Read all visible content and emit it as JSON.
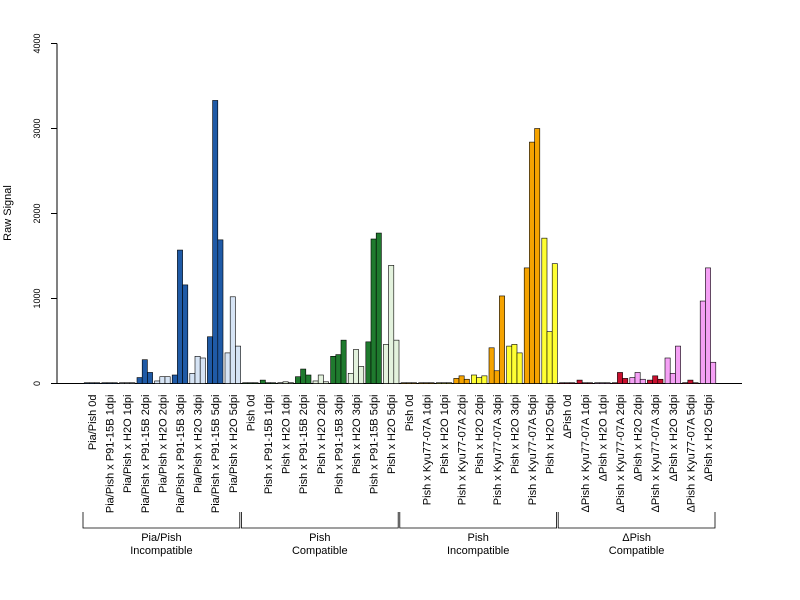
{
  "chart_data": {
    "type": "bar",
    "ylabel": "Raw Signal",
    "ylim": [
      0,
      4000
    ],
    "yticks": [
      0,
      1000,
      2000,
      3000,
      4000
    ],
    "bars_per_category": 3,
    "categories": [
      "Pia/Pish 0d",
      "Pia/Pish x P91-15B 1dpi",
      "Pia/Pish x H2O 1dpi",
      "Pia/Pish x P91-15B 2dpi",
      "Pia/Pish x H2O 2dpi",
      "Pia/Pish x P91-15B 3dpi",
      "Pia/Pish x H2O 3dpi",
      "Pia/Pish x P91-15B 5dpi",
      "Pia/Pish x H2O 5dpi",
      "Pish 0d",
      "Pish x P91-15B 1dpi",
      "Pish x H2O 1dpi",
      "Pish x P91-15B 2dpi",
      "Pish x H2O 2dpi",
      "Pish x P91-15B 3dpi",
      "Pish x H2O 3dpi",
      "Pish x P91-15B 5dpi",
      "Pish x H2O 5dpi",
      "Pish 0d",
      "Pish x Kyu77-07A 1dpi",
      "Pish x H2O 1dpi",
      "Pish x Kyu77-07A 2dpi",
      "Pish x H2O 2dpi",
      "Pish x Kyu77-07A 3dpi",
      "Pish x H2O 3dpi",
      "Pish x Kyu77-07A 5dpi",
      "Pish x H2O 5dpi",
      "ΔPish 0d",
      "ΔPish x Kyu77-07A 1dpi",
      "ΔPish x H2O 1dpi",
      "ΔPish x Kyu77-07A 2dpi",
      "ΔPish x H2O 2dpi",
      "ΔPish x Kyu77-07A 3dpi",
      "ΔPish x H2O 3dpi",
      "ΔPish x Kyu77-07A 5dpi",
      "ΔPish x H2O 5dpi"
    ],
    "values": [
      [
        5,
        5,
        5
      ],
      [
        5,
        5,
        5
      ],
      [
        5,
        5,
        5
      ],
      [
        70,
        280,
        130
      ],
      [
        30,
        80,
        80
      ],
      [
        100,
        1570,
        1160
      ],
      [
        120,
        320,
        300
      ],
      [
        550,
        3330,
        1690
      ],
      [
        360,
        1020,
        440
      ],
      [
        5,
        5,
        5
      ],
      [
        40,
        10,
        5
      ],
      [
        10,
        20,
        10
      ],
      [
        80,
        170,
        100
      ],
      [
        30,
        100,
        20
      ],
      [
        320,
        340,
        510
      ],
      [
        120,
        400,
        200
      ],
      [
        490,
        1700,
        1770
      ],
      [
        460,
        1390,
        510
      ],
      [
        5,
        5,
        5
      ],
      [
        5,
        5,
        5
      ],
      [
        5,
        5,
        5
      ],
      [
        60,
        90,
        50
      ],
      [
        100,
        70,
        90
      ],
      [
        420,
        150,
        1030
      ],
      [
        440,
        460,
        360
      ],
      [
        1360,
        2840,
        3000
      ],
      [
        1710,
        610,
        1410
      ],
      [
        5,
        5,
        5
      ],
      [
        40,
        5,
        5
      ],
      [
        5,
        5,
        5
      ],
      [
        5,
        130,
        60
      ],
      [
        70,
        130,
        50
      ],
      [
        40,
        90,
        50
      ],
      [
        300,
        120,
        440
      ],
      [
        10,
        40,
        5
      ],
      [
        970,
        1360,
        250
      ]
    ],
    "category_colors": [
      "#1f5aa6",
      "#1f5aa6",
      "#d6e4f5",
      "#1f5aa6",
      "#d6e4f5",
      "#1f5aa6",
      "#d6e4f5",
      "#1f5aa6",
      "#d6e4f5",
      "#1f7a2e",
      "#1f7a2e",
      "#e3f2dd",
      "#1f7a2e",
      "#e3f2dd",
      "#1f7a2e",
      "#e3f2dd",
      "#1f7a2e",
      "#e3f2dd",
      "#f5a300",
      "#f5a300",
      "#ffff33",
      "#f5a300",
      "#ffff33",
      "#f5a300",
      "#ffff33",
      "#f5a300",
      "#ffff33",
      "#c8102e",
      "#c8102e",
      "#f5a0f5",
      "#c8102e",
      "#f5a0f5",
      "#c8102e",
      "#f5a0f5",
      "#c8102e",
      "#f5a0f5"
    ],
    "groups": [
      {
        "line1": "Pia/Pish",
        "line2": "Incompatible",
        "start": 0,
        "end": 8
      },
      {
        "line1": "Pish",
        "line2": "Compatible",
        "start": 9,
        "end": 17
      },
      {
        "line1": "Pish",
        "line2": "Incompatible",
        "start": 18,
        "end": 26
      },
      {
        "line1": "ΔPish",
        "line2": "Compatible",
        "start": 27,
        "end": 35
      }
    ],
    "grid": false,
    "legend": "none"
  }
}
